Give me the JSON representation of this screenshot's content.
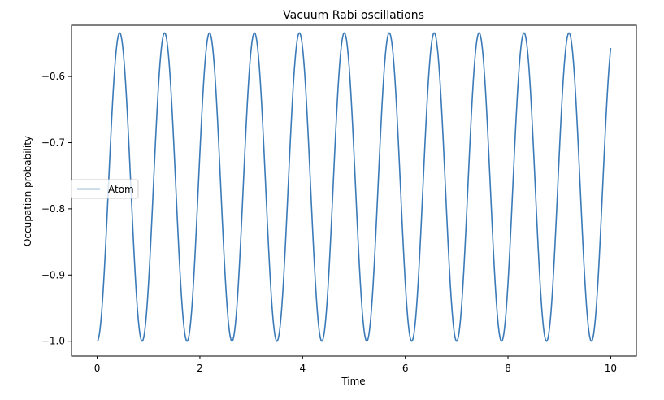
{
  "chart_data": {
    "type": "line",
    "title": "Vacuum Rabi oscillations",
    "xlabel": "Time",
    "ylabel": "Occupation probability",
    "xlim": [
      -0.5,
      10.5
    ],
    "ylim": [
      -1.0225,
      -0.5225
    ],
    "xticks": [
      0,
      2,
      4,
      6,
      8,
      10
    ],
    "xtick_labels": [
      "0",
      "2",
      "4",
      "6",
      "8",
      "10"
    ],
    "yticks": [
      -1.0,
      -0.9,
      -0.8,
      -0.7,
      -0.6
    ],
    "ytick_labels": [
      "−1.0",
      "−0.9",
      "−0.8",
      "−0.7",
      "−0.6"
    ],
    "grid": false,
    "legend": {
      "position": "center-left",
      "entries": [
        "Atom"
      ]
    },
    "series": [
      {
        "name": "Atom",
        "color": "#3a7ab8",
        "model": "y = -1 + A * sin^2(pi * t / T)",
        "amplitude": 0.466,
        "period": 0.875,
        "t_start": 0,
        "t_end": 10,
        "samples": 1001,
        "x_sample": [
          0,
          0.4375,
          0.875,
          1.3125,
          1.75,
          2.1875,
          2.625,
          3.0625,
          3.5,
          3.9375,
          4.375,
          4.8125,
          5.25,
          5.6875,
          6.125,
          6.5625,
          7.0,
          7.4375,
          7.875,
          8.3125,
          8.75,
          9.1875,
          9.625,
          10.0
        ],
        "y_sample": [
          -1.0,
          -0.534,
          -1.0,
          -0.534,
          -1.0,
          -0.534,
          -1.0,
          -0.534,
          -1.0,
          -0.534,
          -1.0,
          -0.534,
          -1.0,
          -0.534,
          -1.0,
          -0.534,
          -1.0,
          -0.534,
          -1.0,
          -0.534,
          -1.0,
          -0.534,
          -1.0,
          -0.564
        ]
      }
    ]
  }
}
